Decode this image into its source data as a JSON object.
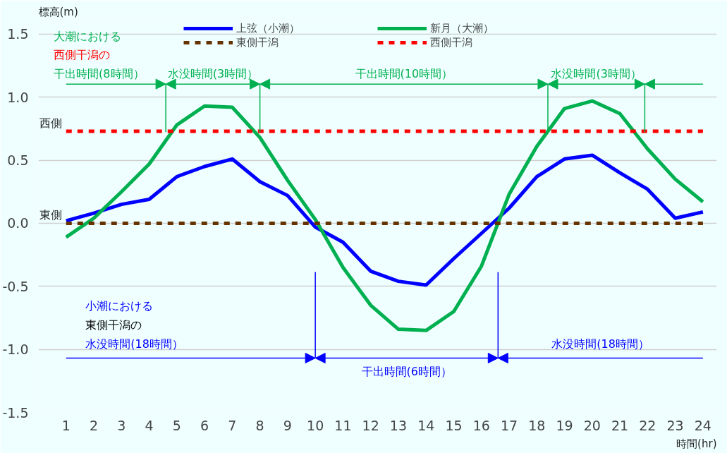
{
  "chart_data": {
    "type": "line",
    "ylabel": "標高(m)",
    "xlabel": "時間(hr)",
    "x": [
      1,
      2,
      3,
      4,
      5,
      6,
      7,
      8,
      9,
      10,
      11,
      12,
      13,
      14,
      15,
      16,
      17,
      18,
      19,
      20,
      21,
      22,
      23,
      24
    ],
    "series": [
      {
        "name": "上弦（小潮）",
        "color": "#0000ff",
        "line_style": "solid",
        "values": [
          0.02,
          0.08,
          0.15,
          0.19,
          0.37,
          0.45,
          0.51,
          0.33,
          0.22,
          -0.03,
          -0.15,
          -0.38,
          -0.46,
          -0.49,
          -0.28,
          -0.08,
          0.12,
          0.37,
          0.51,
          0.54,
          0.4,
          0.27,
          0.04,
          0.09
        ]
      },
      {
        "name": "新月（大潮）",
        "color": "#00b050",
        "line_style": "solid",
        "values": [
          -0.11,
          0.04,
          0.25,
          0.47,
          0.78,
          0.93,
          0.92,
          0.68,
          0.34,
          0.03,
          -0.35,
          -0.65,
          -0.84,
          -0.85,
          -0.7,
          -0.34,
          0.23,
          0.61,
          0.91,
          0.97,
          0.87,
          0.59,
          0.35,
          0.17
        ]
      },
      {
        "name": "東側干潟",
        "color": "#663300",
        "line_style": "dashed",
        "values": [
          0,
          0,
          0,
          0,
          0,
          0,
          0,
          0,
          0,
          0,
          0,
          0,
          0,
          0,
          0,
          0,
          0,
          0,
          0,
          0,
          0,
          0,
          0,
          0
        ]
      },
      {
        "name": "西側干潟",
        "color": "#ff0000",
        "line_style": "dashed",
        "values": [
          0.73,
          0.73,
          0.73,
          0.73,
          0.73,
          0.73,
          0.73,
          0.73,
          0.73,
          0.73,
          0.73,
          0.73,
          0.73,
          0.73,
          0.73,
          0.73,
          0.73,
          0.73,
          0.73,
          0.73,
          0.73,
          0.73,
          0.73,
          0.73
        ]
      }
    ],
    "xlim": [
      0,
      24.5
    ],
    "ylim": [
      -1.5,
      1.6
    ],
    "xticks": [
      1,
      2,
      3,
      4,
      5,
      6,
      7,
      8,
      9,
      10,
      11,
      12,
      13,
      14,
      15,
      16,
      17,
      18,
      19,
      20,
      21,
      22,
      23,
      24
    ],
    "yticks": [
      {
        "value": -1.5,
        "label": "-1.5"
      },
      {
        "value": -1.0,
        "label": "-1.0"
      },
      {
        "value": -0.5,
        "label": "-0.5"
      },
      {
        "value": 0,
        "label": "0.0"
      },
      {
        "value": 0.5,
        "label": "0.5"
      },
      {
        "value": 1.0,
        "label": "1.0"
      },
      {
        "value": 1.5,
        "label": "1.5"
      }
    ],
    "grid": "y",
    "legend": "top",
    "ref_lines": [
      {
        "axis": "x",
        "value": 4.6,
        "color": "#00b050"
      },
      {
        "axis": "x",
        "value": 8,
        "color": "#00b050"
      },
      {
        "axis": "x",
        "value": 18.4,
        "color": "#00b050"
      },
      {
        "axis": "x",
        "value": 21.9,
        "color": "#00b050"
      },
      {
        "axis": "x",
        "value": 10,
        "color": "#0000ff"
      },
      {
        "axis": "x",
        "value": 16.6,
        "color": "#0000ff"
      }
    ],
    "annotations": [
      {
        "text": "西側",
        "x": 1,
        "y": 0.73
      },
      {
        "text": "東側",
        "x": 1,
        "y": 0
      },
      "大潮における",
      "西側干潟の",
      "干出時間(8時間）",
      "水没時間(3時間）",
      "干出時間(10時間）",
      "水没時間(3時間）",
      "小潮における",
      "東側干潟の",
      "水没時間(18時間）",
      "干出時間(6時間）",
      "水没時間(18時間）"
    ]
  }
}
